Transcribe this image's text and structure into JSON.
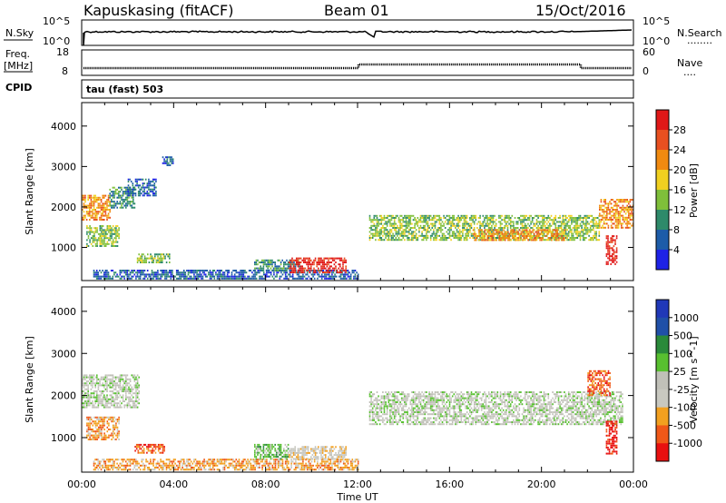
{
  "header": {
    "station": "Kapuskasing (fitACF)",
    "beam": "Beam 01",
    "date": "15/Oct/2016"
  },
  "panels": {
    "nsky": {
      "left_label": "N.Sky",
      "left_ticks": [
        "10^5",
        "10^0"
      ],
      "right_label": "N.Search",
      "right_ticks": [
        "10^5",
        "10^0"
      ],
      "right_dots": "........"
    },
    "freq": {
      "left_label_1": "Freq.",
      "left_label_2": "[MHz]",
      "left_ticks": [
        "18",
        "8"
      ],
      "right_label": "Nave",
      "right_ticks": [
        "60",
        "0"
      ],
      "right_dots": "....",
      "cpid_label": "CPID"
    },
    "cpid_text": "tau (fast) 503"
  },
  "colors": {
    "power": [
      "#1e22e6",
      "#1d5ca8",
      "#2e8a6a",
      "#7fbf3a",
      "#f0d020",
      "#f08a10",
      "#e85020",
      "#e01818"
    ],
    "velocity_bins": [
      "#e81010",
      "#f05818",
      "#f2a020",
      "#c8c8c0",
      "#c0c0b8",
      "#58c030",
      "#2a8a3a",
      "#2050a8",
      "#2038b8"
    ]
  },
  "chart_data": [
    {
      "type": "heatmap",
      "name": "Power",
      "xlabel": "Time UT",
      "ylabel": "Slant Range [km]",
      "x_ticks": [
        "00:00",
        "04:00",
        "08:00",
        "12:00",
        "16:00",
        "20:00",
        "00:00"
      ],
      "y_ticks": [
        "1000",
        "2000",
        "3000",
        "4000"
      ],
      "ylim": [
        180,
        4580
      ],
      "colorbar_label": "Power [dB]",
      "colorbar_ticks": [
        "4",
        "8",
        "12",
        "16",
        "20",
        "24",
        "28"
      ],
      "regions": [
        {
          "t": [
            0.0,
            1.2
          ],
          "r": [
            1700,
            2300
          ],
          "level": 5
        },
        {
          "t": [
            0.2,
            1.6
          ],
          "r": [
            1050,
            1550
          ],
          "level": 3
        },
        {
          "t": [
            1.2,
            2.3
          ],
          "r": [
            2000,
            2500
          ],
          "level": 2
        },
        {
          "t": [
            2.0,
            3.2
          ],
          "r": [
            2300,
            2700
          ],
          "level": 1
        },
        {
          "t": [
            3.5,
            4.0
          ],
          "r": [
            3050,
            3250
          ],
          "level": 1
        },
        {
          "t": [
            2.4,
            3.8
          ],
          "r": [
            650,
            850
          ],
          "level": 3
        },
        {
          "t": [
            0.5,
            12.0
          ],
          "r": [
            250,
            450
          ],
          "level": 1
        },
        {
          "t": [
            7.5,
            9.5
          ],
          "r": [
            450,
            700
          ],
          "level": 2
        },
        {
          "t": [
            9.0,
            11.5
          ],
          "r": [
            400,
            750
          ],
          "level": 7
        },
        {
          "t": [
            12.5,
            22.5
          ],
          "r": [
            1200,
            1800
          ],
          "level": 3
        },
        {
          "t": [
            17.0,
            21.0
          ],
          "r": [
            1200,
            1450
          ],
          "level": 5
        },
        {
          "t": [
            22.5,
            24.0
          ],
          "r": [
            1500,
            2200
          ],
          "level": 5
        },
        {
          "t": [
            22.8,
            23.3
          ],
          "r": [
            600,
            1300
          ],
          "level": 7
        }
      ]
    },
    {
      "type": "heatmap",
      "name": "Velocity",
      "xlabel": "Time UT",
      "ylabel": "Slant Range [km]",
      "x_ticks": [
        "00:00",
        "04:00",
        "08:00",
        "12:00",
        "16:00",
        "20:00",
        "00:00"
      ],
      "y_ticks": [
        "1000",
        "2000",
        "3000",
        "4000"
      ],
      "ylim": [
        180,
        4580
      ],
      "colorbar_label": "Velocity [m s^-1]",
      "colorbar_ticks": [
        "1000",
        "500",
        "100",
        "25",
        "-25",
        "-100",
        "-500",
        "-1000"
      ],
      "regions": [
        {
          "t": [
            0.0,
            2.5
          ],
          "r": [
            1700,
            2500
          ],
          "level": 4
        },
        {
          "t": [
            0.2,
            1.6
          ],
          "r": [
            950,
            1500
          ],
          "level": 2
        },
        {
          "t": [
            2.3,
            3.6
          ],
          "r": [
            650,
            850
          ],
          "level": 1
        },
        {
          "t": [
            0.5,
            12.0
          ],
          "r": [
            250,
            500
          ],
          "level": 2
        },
        {
          "t": [
            7.5,
            9.0
          ],
          "r": [
            500,
            850
          ],
          "level": 5
        },
        {
          "t": [
            9.0,
            11.5
          ],
          "r": [
            500,
            800
          ],
          "level": 3
        },
        {
          "t": [
            12.5,
            23.5
          ],
          "r": [
            1300,
            2100
          ],
          "level": 4
        },
        {
          "t": [
            22.8,
            23.3
          ],
          "r": [
            600,
            1400
          ],
          "level": 0
        },
        {
          "t": [
            22.0,
            23.0
          ],
          "r": [
            2000,
            2600
          ],
          "level": 1
        }
      ]
    }
  ]
}
